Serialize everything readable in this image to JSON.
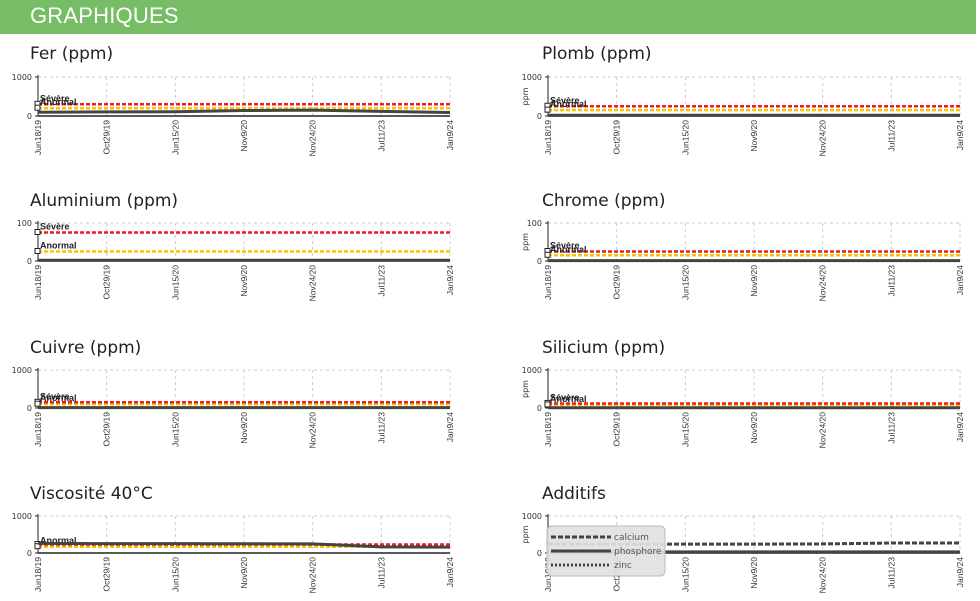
{
  "section": {
    "title": "GRAPHIQUES"
  },
  "colors": {
    "severe": "#ee1c24",
    "abnormal": "#f7c600",
    "data": "#444444",
    "grid": "#cccccc",
    "header": "#77bd65"
  },
  "x_ticks": [
    "Jun18/19",
    "Oct29/19",
    "Jun15/20",
    "Nov9/20",
    "Nov24/20",
    "Jul11/23",
    "Jan9/24"
  ],
  "chart_data": [
    {
      "type": "line",
      "title": "Fer (ppm)",
      "ylabel": "",
      "ylim": [
        0,
        1000
      ],
      "yticks": [
        "1000",
        "0"
      ],
      "categories": [
        "Jun18/19",
        "Oct29/19",
        "Jun15/20",
        "Nov9/20",
        "Nov24/20",
        "Jul11/23",
        "Jan9/24"
      ],
      "labels": {
        "severe": "Sévère",
        "abnormal": "Anormal"
      },
      "thresholds": {
        "severe": 300,
        "abnormal": 200
      },
      "series": [
        {
          "values": [
            95,
            105,
            110,
            140,
            150,
            120,
            90
          ]
        }
      ],
      "grid": true
    },
    {
      "type": "line",
      "title": "Plomb (ppm)",
      "ylabel": "ppm",
      "ylim": [
        0,
        1000
      ],
      "yticks": [
        "1000",
        "0"
      ],
      "categories": [
        "Jun18/19",
        "Oct29/19",
        "Jun15/20",
        "Nov9/20",
        "Nov24/20",
        "Jul11/23",
        "Jan9/24"
      ],
      "labels": {
        "severe": "Sévère",
        "abnormal": "Anormal"
      },
      "thresholds": {
        "severe": 250,
        "abnormal": 150
      },
      "series": [
        {
          "values": [
            20,
            20,
            20,
            20,
            20,
            20,
            20
          ]
        }
      ],
      "grid": true
    },
    {
      "type": "line",
      "title": "Aluminium (ppm)",
      "ylabel": "",
      "ylim": [
        0,
        100
      ],
      "yticks": [
        "100",
        "0"
      ],
      "categories": [
        "Jun18/19",
        "Oct29/19",
        "Jun15/20",
        "Nov9/20",
        "Nov24/20",
        "Jul11/23",
        "Jan9/24"
      ],
      "labels": {
        "severe": "Sévère",
        "abnormal": "Anormal"
      },
      "thresholds": {
        "severe": 75,
        "abnormal": 25
      },
      "series": [
        {
          "values": [
            2,
            2,
            2,
            2,
            2,
            2,
            2
          ]
        }
      ],
      "grid": true
    },
    {
      "type": "line",
      "title": "Chrome (ppm)",
      "ylabel": "ppm",
      "ylim": [
        0,
        100
      ],
      "yticks": [
        "100",
        "0"
      ],
      "categories": [
        "Jun18/19",
        "Oct29/19",
        "Jun15/20",
        "Nov9/20",
        "Nov24/20",
        "Jul11/23",
        "Jan9/24"
      ],
      "labels": {
        "severe": "Sévère",
        "abnormal": "Anormal"
      },
      "thresholds": {
        "severe": 25,
        "abnormal": 15
      },
      "series": [
        {
          "values": [
            1,
            1,
            1,
            1,
            1,
            1,
            1
          ]
        }
      ],
      "grid": true
    },
    {
      "type": "line",
      "title": "Cuivre (ppm)",
      "ylabel": "",
      "ylim": [
        0,
        1000
      ],
      "yticks": [
        "1000",
        "0"
      ],
      "categories": [
        "Jun18/19",
        "Oct29/19",
        "Jun15/20",
        "Nov9/20",
        "Nov24/20",
        "Jul11/23",
        "Jan9/24"
      ],
      "labels": {
        "severe": "Sévère",
        "abnormal": "Anormal"
      },
      "thresholds": {
        "severe": 150,
        "abnormal": 100
      },
      "series": [
        {
          "values": [
            10,
            10,
            10,
            10,
            10,
            10,
            10
          ]
        }
      ],
      "grid": true
    },
    {
      "type": "line",
      "title": "Silicium (ppm)",
      "ylabel": "ppm",
      "ylim": [
        0,
        1000
      ],
      "yticks": [
        "1000",
        "0"
      ],
      "categories": [
        "Jun18/19",
        "Oct29/19",
        "Jun15/20",
        "Nov9/20",
        "Nov24/20",
        "Jul11/23",
        "Jan9/24"
      ],
      "labels": {
        "severe": "Sévère",
        "abnormal": "Anormal"
      },
      "thresholds": {
        "severe": 120,
        "abnormal": 80
      },
      "series": [
        {
          "values": [
            8,
            8,
            8,
            8,
            8,
            8,
            8
          ]
        }
      ],
      "grid": true
    },
    {
      "type": "line",
      "title": "Viscosité 40°C",
      "ylabel": "",
      "ylim": [
        0,
        1000
      ],
      "yticks": [
        "1000",
        "0"
      ],
      "categories": [
        "Jun18/19",
        "Oct29/19",
        "Jun15/20",
        "Nov9/20",
        "Nov24/20",
        "Jul11/23",
        "Jan9/24"
      ],
      "labels": {
        "severe": "",
        "abnormal": "Anormal"
      },
      "thresholds": {
        "severe": 230,
        "abnormal": 170
      },
      "series": [
        {
          "values": [
            260,
            255,
            255,
            250,
            245,
            165,
            160
          ]
        }
      ],
      "grid": true
    },
    {
      "type": "line",
      "title": "Additifs",
      "ylabel": "ppm",
      "ylim": [
        0,
        1000
      ],
      "yticks": [
        "1000",
        "0"
      ],
      "categories": [
        "Jun18/19",
        "Oct29/19",
        "Jun15/20",
        "Nov9/20",
        "Nov24/20",
        "Jul11/23",
        "Jan9/24"
      ],
      "series": [
        {
          "name": "calcium",
          "values": [
            240,
            240,
            240,
            240,
            245,
            270,
            270
          ]
        },
        {
          "name": "phosphore",
          "values": [
            30,
            30,
            30,
            30,
            30,
            30,
            30
          ]
        },
        {
          "name": "zinc",
          "values": [
            20,
            20,
            20,
            20,
            20,
            20,
            20
          ]
        }
      ],
      "grid": true,
      "legend": "top-left"
    }
  ]
}
